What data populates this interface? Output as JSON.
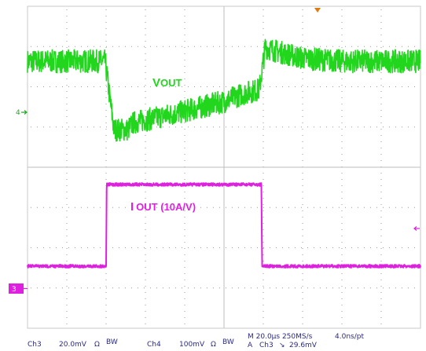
{
  "chart_data": {
    "type": "line",
    "title": "",
    "xlabel": "",
    "ylabel": "",
    "xlim": [
      0,
      200
    ],
    "x_unit": "µs",
    "divisions": {
      "x": 10,
      "y": 8
    },
    "grid": true,
    "series": [
      {
        "name": "VOUT",
        "label_prefix": "V",
        "label_suffix": "OUT",
        "color": "#22d61e",
        "channel": "Ch3",
        "channel_marker": "4",
        "points": [
          [
            0,
            0
          ],
          [
            39.5,
            0
          ],
          [
            44,
            -3.4
          ],
          [
            51,
            -3.4
          ],
          [
            54,
            -3.05
          ],
          [
            75,
            -2.6
          ],
          [
            100,
            -2.0
          ],
          [
            110,
            -1.6
          ],
          [
            118,
            -1.4
          ],
          [
            121,
            0.7
          ],
          [
            125,
            0.55
          ],
          [
            140,
            0.15
          ],
          [
            160,
            0
          ],
          [
            200,
            0
          ]
        ],
        "noise_mV": 2.6
      },
      {
        "name": "IOUT (10A/V)",
        "label_prefix": "I",
        "label_suffix": "OUT",
        "label_extra": " (10A/V)",
        "color": "#e020e0",
        "channel": "Ch4",
        "channel_marker": "3",
        "points": [
          [
            0,
            0
          ],
          [
            40,
            0
          ],
          [
            40.3,
            1.0
          ],
          [
            119,
            1.0
          ],
          [
            119.4,
            0
          ],
          [
            200,
            0
          ]
        ],
        "noise_V": 0.012
      }
    ],
    "readout": {
      "ch3_label": "Ch3",
      "ch3_scale": "20.0mV",
      "ch3_coupling": "Ω",
      "ch3_bw": "BW",
      "ch4_label": "Ch4",
      "ch4_scale": "100mV",
      "ch4_coupling": "Ω",
      "ch4_bw": "BW",
      "timebase": "M 20.0µs 250MS/s",
      "resolution": "4.0ns/pt",
      "trigger_prefix": "A",
      "trigger_channel": "Ch3",
      "trigger_slope": "↘",
      "trigger_level": "29.6mV"
    }
  },
  "colors": {
    "grid": "#c8c8c8",
    "grid_dots": "#9a9a9a",
    "trigger_marker": "#e07a10"
  }
}
